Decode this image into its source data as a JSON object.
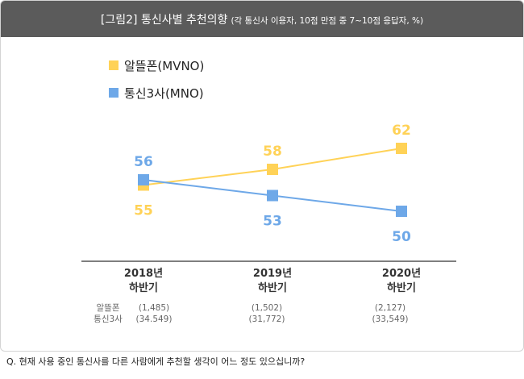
{
  "title": {
    "main": "[그림2] 통신사별 추천의향",
    "sub": "(각 통신사 이용자, 10점 만점 중 7~10점 응답자, %)"
  },
  "question": "Q.  현재 사용 중인 통신사를 다른 사람에게 추천할 생각이 어느 정도 있으십니까?",
  "chart_data": {
    "type": "line",
    "title": "[그림2] 통신사별 추천의향",
    "categories": [
      [
        "2018년",
        "하반기"
      ],
      [
        "2019년",
        "하반기"
      ],
      [
        "2020년",
        "하반기"
      ]
    ],
    "series": [
      {
        "name": "알뜰폰(MVNO)",
        "color": "#ffd257",
        "values": [
          55,
          58,
          62
        ],
        "label_position": [
          "below",
          "above",
          "above"
        ],
        "sample_sizes": [
          "(1,485)",
          "(1,502)",
          "(2,127)"
        ]
      },
      {
        "name": "통신3사(MNO)",
        "color": "#6ea8e8",
        "values": [
          56,
          53,
          50
        ],
        "label_position": [
          "above",
          "below",
          "below"
        ],
        "sample_sizes": [
          "(34.549)",
          "(31,772)",
          "(33,549)"
        ]
      }
    ],
    "sample_row_labels": [
      "알뜰폰",
      "통신3사"
    ],
    "legend_position": "top-left",
    "grid": false
  }
}
